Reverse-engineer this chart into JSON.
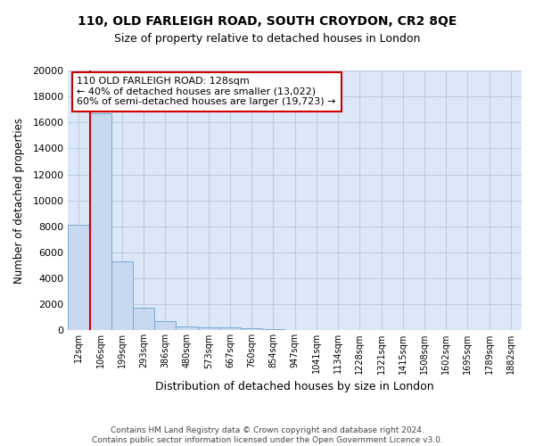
{
  "title_line1": "110, OLD FARLEIGH ROAD, SOUTH CROYDON, CR2 8QE",
  "title_line2": "Size of property relative to detached houses in London",
  "xlabel": "Distribution of detached houses by size in London",
  "ylabel": "Number of detached properties",
  "bar_color": "#c8d8f0",
  "bar_edge_color": "#7aaad4",
  "categories": [
    "12sqm",
    "106sqm",
    "199sqm",
    "293sqm",
    "386sqm",
    "480sqm",
    "573sqm",
    "667sqm",
    "760sqm",
    "854sqm",
    "947sqm",
    "1041sqm",
    "1134sqm",
    "1228sqm",
    "1321sqm",
    "1415sqm",
    "1508sqm",
    "1602sqm",
    "1695sqm",
    "1789sqm",
    "1882sqm"
  ],
  "values": [
    8100,
    16700,
    5300,
    1750,
    700,
    300,
    220,
    200,
    175,
    100,
    0,
    0,
    0,
    0,
    0,
    0,
    0,
    0,
    0,
    0,
    0
  ],
  "ylim": [
    0,
    20000
  ],
  "yticks": [
    0,
    2000,
    4000,
    6000,
    8000,
    10000,
    12000,
    14000,
    16000,
    18000,
    20000
  ],
  "annotation_text": "110 OLD FARLEIGH ROAD: 128sqm\n← 40% of detached houses are smaller (13,022)\n60% of semi-detached houses are larger (19,723) →",
  "annotation_box_color": "#ffffff",
  "annotation_box_edge_color": "#cc0000",
  "vline_color": "#cc0000",
  "property_bar_index": 1,
  "background_color": "#dce8f8",
  "fig_background_color": "#ffffff",
  "grid_color": "#c0cce0",
  "footer_line1": "Contains HM Land Registry data © Crown copyright and database right 2024.",
  "footer_line2": "Contains public sector information licensed under the Open Government Licence v3.0."
}
